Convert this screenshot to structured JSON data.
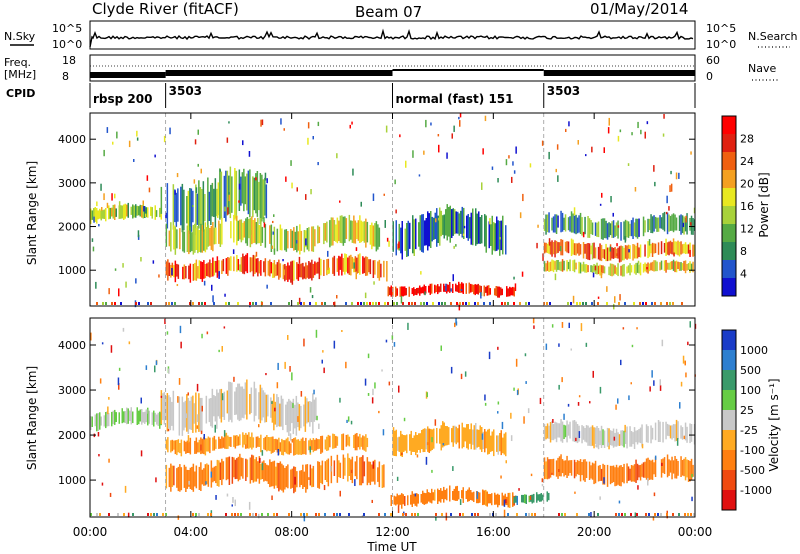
{
  "header": {
    "station": "Clyde River (fitACF)",
    "beam": "Beam 07",
    "date": "01/May/2014"
  },
  "status_panels": {
    "nsky_label": "N.Sky",
    "nsearch_label": "N.Search",
    "nsky_ticks": [
      "10^5",
      "10^0"
    ],
    "freq_label_line1": "Freq.",
    "freq_label_line2": "[MHz]",
    "freq_ticks": [
      "18",
      "8"
    ],
    "nave_label": "Nave",
    "nave_ticks": [
      "60",
      "0"
    ],
    "cpid_label": "CPID",
    "cpid_segments": [
      {
        "start_hour": 0,
        "label": "rbsp 200"
      },
      {
        "start_hour": 3.0,
        "label": "3503"
      },
      {
        "start_hour": 12.0,
        "label": "normal (fast) 151"
      },
      {
        "start_hour": 18.0,
        "label": "3503"
      }
    ]
  },
  "x_axis": {
    "label": "Time UT",
    "tick_labels": [
      "00:00",
      "04:00",
      "08:00",
      "12:00",
      "16:00",
      "20:00",
      "00:00"
    ],
    "range_hours": [
      0,
      24
    ]
  },
  "power_panel": {
    "ylabel": "Slant Range [km]",
    "ytick_labels": [
      "1000",
      "2000",
      "3000",
      "4000"
    ],
    "colorbar_title": "Power [dB]",
    "colorbar_tick_labels": [
      "4",
      "8",
      "12",
      "16",
      "20",
      "24",
      "28"
    ],
    "colors": [
      "#1010d0",
      "#2255cc",
      "#2e8b57",
      "#55aa44",
      "#a8d23a",
      "#e8e820",
      "#f4a020",
      "#f06010",
      "#e02010",
      "#ff0000"
    ]
  },
  "velocity_panel": {
    "ylabel": "Slant Range [km]",
    "ytick_labels": [
      "1000",
      "2000",
      "3000",
      "4000"
    ],
    "colorbar_title": "Velocity [m s⁻¹]",
    "colorbar_tick_labels": [
      "1000",
      "500",
      "100",
      "25",
      "-25",
      "-100",
      "-500",
      "-1000"
    ],
    "colors": [
      "#1a3cc8",
      "#2d7fd0",
      "#3a9a6a",
      "#66cc44",
      "#c8c8c8",
      "#ffaa22",
      "#ff7f10",
      "#f04a10",
      "#e01010"
    ]
  },
  "chart_data": {
    "type": "heatmap",
    "x": {
      "label": "Time UT",
      "unit": "hour",
      "range": [
        0,
        24
      ]
    },
    "y": {
      "label": "Slant Range [km]",
      "range": [
        180,
        4600
      ]
    },
    "power_bands": [
      {
        "t_start": 0.0,
        "t_end": 2.8,
        "range_center": 2300,
        "range_width": 180,
        "level": 0.45
      },
      {
        "t_start": 2.8,
        "t_end": 7.0,
        "range_center": 2600,
        "range_width": 600,
        "level": 0.3
      },
      {
        "t_start": 3.0,
        "t_end": 11.5,
        "range_center": 1800,
        "range_width": 350,
        "level": 0.5
      },
      {
        "t_start": 3.0,
        "t_end": 11.8,
        "range_center": 1050,
        "range_width": 250,
        "level": 0.8
      },
      {
        "t_start": 11.8,
        "t_end": 16.8,
        "range_center": 550,
        "range_width": 130,
        "level": 0.95
      },
      {
        "t_start": 12.0,
        "t_end": 16.5,
        "range_center": 1900,
        "range_width": 450,
        "level": 0.2
      },
      {
        "t_start": 18.0,
        "t_end": 24.0,
        "range_center": 1450,
        "range_width": 200,
        "level": 0.7
      },
      {
        "t_start": 18.0,
        "t_end": 24.0,
        "range_center": 1050,
        "range_width": 150,
        "level": 0.55
      },
      {
        "t_start": 18.0,
        "t_end": 24.0,
        "range_center": 2000,
        "range_width": 250,
        "level": 0.25
      }
    ],
    "velocity_bands": [
      {
        "t_start": 0.0,
        "t_end": 2.8,
        "range_center": 2350,
        "range_width": 200,
        "level": 3.5
      },
      {
        "t_start": 2.8,
        "t_end": 9.0,
        "range_center": 2600,
        "range_width": 450,
        "level": 4.2
      },
      {
        "t_start": 3.0,
        "t_end": 11.8,
        "range_center": 1150,
        "range_width": 320,
        "level": 6.0
      },
      {
        "t_start": 3.0,
        "t_end": 11.0,
        "range_center": 1800,
        "range_width": 200,
        "level": 5.4
      },
      {
        "t_start": 11.8,
        "t_end": 16.8,
        "range_center": 620,
        "range_width": 180,
        "level": 6.0
      },
      {
        "t_start": 12.0,
        "t_end": 16.5,
        "range_center": 1900,
        "range_width": 300,
        "level": 5.0
      },
      {
        "t_start": 16.8,
        "t_end": 18.2,
        "range_center": 600,
        "range_width": 120,
        "level": 2.0
      },
      {
        "t_start": 18.0,
        "t_end": 24.0,
        "range_center": 1200,
        "range_width": 260,
        "level": 6.0
      },
      {
        "t_start": 18.0,
        "t_end": 24.0,
        "range_center": 2000,
        "range_width": 250,
        "level": 4.0
      }
    ]
  }
}
